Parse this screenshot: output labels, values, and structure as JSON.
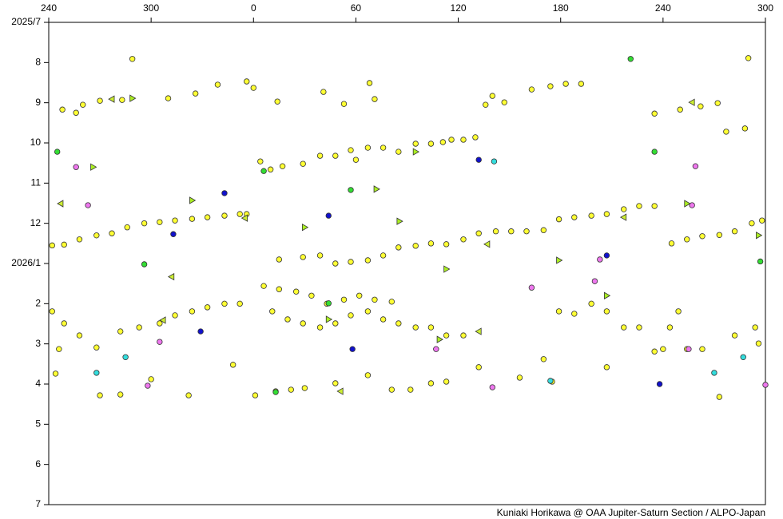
{
  "chart_data": {
    "type": "scatter",
    "credit": "Kuniaki Horikawa @ OAA Jupiter-Saturn Section / ALPO-Japan",
    "xlim": [
      -120,
      300
    ],
    "xticks": [
      {
        "value": -120,
        "label": "240"
      },
      {
        "value": -60,
        "label": "300"
      },
      0,
      60,
      120,
      180,
      240,
      300
    ],
    "ylim": [
      0,
      12
    ],
    "y_inverted": true,
    "yticks": [
      {
        "value": 0,
        "label": "2025/7"
      },
      {
        "value": 1,
        "label": "8"
      },
      {
        "value": 2,
        "label": "9"
      },
      {
        "value": 3,
        "label": "10"
      },
      {
        "value": 4,
        "label": "11"
      },
      {
        "value": 5,
        "label": "12"
      },
      {
        "value": 6,
        "label": "2026/1"
      },
      {
        "value": 7,
        "label": "2"
      },
      {
        "value": 8,
        "label": "3"
      },
      {
        "value": 9,
        "label": "4"
      },
      {
        "value": 10,
        "label": "5"
      },
      {
        "value": 11,
        "label": "6"
      },
      {
        "value": 12,
        "label": "7"
      }
    ],
    "series": [
      {
        "color": "#ffff33",
        "marker": "circle",
        "x": [
          -71,
          -112,
          -100,
          -104,
          -90,
          -77,
          -50,
          -34,
          -21,
          -4,
          0,
          14,
          41,
          53,
          68,
          71,
          136,
          140,
          147,
          163,
          174,
          183,
          192,
          235,
          250,
          262,
          272,
          290,
          277,
          288,
          4,
          10,
          17,
          29,
          39,
          48,
          57,
          67,
          76,
          85,
          95,
          104,
          111,
          116,
          123,
          130,
          60,
          -118,
          -111,
          -102,
          -92,
          -83,
          -74,
          -64,
          -55,
          -46,
          -36,
          -27,
          -17,
          -8,
          -4,
          15,
          29,
          39,
          48,
          57,
          67,
          76,
          85,
          95,
          104,
          113,
          123,
          132,
          142,
          151,
          160,
          170,
          179,
          188,
          198,
          207,
          217,
          226,
          235,
          245,
          254,
          263,
          273,
          282,
          292,
          298,
          6,
          15,
          25,
          34,
          43,
          53,
          62,
          71,
          81,
          11,
          20,
          29,
          39,
          48,
          57,
          67,
          76,
          85,
          95,
          104,
          113,
          123,
          179,
          188,
          198,
          207,
          217,
          226,
          244,
          249,
          -118,
          -111,
          -102,
          -92,
          -78,
          -67,
          -55,
          -46,
          -36,
          -27,
          -17,
          -8,
          -116,
          -114,
          -90,
          -78,
          -60,
          -38,
          -12,
          1,
          13,
          22,
          30,
          48,
          67,
          81,
          92,
          104,
          113,
          132,
          156,
          170,
          175,
          207,
          235,
          240,
          254,
          263,
          273,
          282,
          294,
          296
        ],
        "values": [
          0.91,
          2.17,
          2.05,
          2.25,
          1.95,
          1.93,
          1.89,
          1.77,
          1.55,
          1.47,
          1.63,
          1.97,
          1.73,
          2.03,
          1.51,
          1.91,
          2.05,
          1.83,
          1.99,
          1.67,
          1.59,
          1.53,
          1.53,
          2.27,
          2.17,
          2.09,
          2.01,
          0.89,
          2.72,
          2.64,
          3.46,
          3.66,
          3.58,
          3.52,
          3.32,
          3.32,
          3.18,
          3.12,
          3.12,
          3.22,
          3.02,
          3.02,
          2.98,
          2.92,
          2.92,
          2.86,
          3.42,
          5.55,
          5.53,
          5.4,
          5.3,
          5.25,
          5.1,
          5.0,
          4.97,
          4.93,
          4.89,
          4.85,
          4.81,
          4.77,
          4.77,
          5.9,
          5.84,
          5.8,
          6.0,
          5.96,
          5.92,
          5.8,
          5.6,
          5.56,
          5.5,
          5.52,
          5.4,
          5.25,
          5.2,
          5.2,
          5.2,
          5.17,
          4.9,
          4.85,
          4.81,
          4.77,
          4.65,
          4.57,
          4.57,
          5.5,
          5.4,
          5.32,
          5.29,
          5.2,
          5.0,
          4.93,
          6.56,
          6.64,
          6.7,
          6.8,
          7.0,
          6.9,
          6.8,
          6.9,
          6.95,
          7.19,
          7.39,
          7.49,
          7.59,
          7.49,
          7.29,
          7.19,
          7.39,
          7.49,
          7.59,
          7.59,
          7.79,
          7.79,
          7.19,
          7.25,
          7.0,
          7.19,
          7.59,
          7.59,
          7.59,
          7.19,
          7.19,
          7.49,
          7.79,
          8.09,
          7.69,
          7.59,
          7.49,
          7.29,
          7.19,
          7.09,
          7.0,
          7.0,
          8.74,
          8.13,
          9.28,
          9.26,
          8.88,
          9.28,
          8.52,
          9.28,
          9.18,
          9.14,
          9.1,
          8.98,
          8.78,
          9.14,
          9.14,
          8.98,
          8.94,
          8.58,
          8.84,
          8.38,
          8.94,
          8.58,
          8.19,
          8.13,
          8.13,
          8.13,
          9.32,
          7.79,
          7.59,
          7.99
        ]
      },
      {
        "color": "#33dd33",
        "marker": "circle",
        "x": [
          221,
          -115,
          -64,
          6,
          44,
          235,
          297,
          57,
          13
        ],
        "values": [
          0.91,
          3.22,
          6.02,
          3.7,
          6.99,
          3.22,
          5.95,
          4.17,
          9.2
        ]
      },
      {
        "color": "#ee77ee",
        "marker": "circle",
        "x": [
          -104,
          -97,
          107,
          140,
          200,
          203,
          259,
          257,
          255,
          300,
          -62,
          -55,
          163
        ],
        "values": [
          3.6,
          4.55,
          8.13,
          9.08,
          6.44,
          5.9,
          3.58,
          4.55,
          8.13,
          9.02,
          9.04,
          7.95,
          6.6
        ]
      },
      {
        "color": "#33dddd",
        "marker": "circle",
        "x": [
          -92,
          -75,
          141,
          174,
          270,
          287
        ],
        "values": [
          8.72,
          8.33,
          3.46,
          8.92,
          8.72,
          8.33
        ]
      },
      {
        "color": "#1111cc",
        "marker": "circle",
        "x": [
          -31,
          -17,
          44,
          207,
          238,
          58,
          -47,
          132
        ],
        "values": [
          7.69,
          4.25,
          4.81,
          5.8,
          9.0,
          8.13,
          5.27,
          3.42
        ]
      },
      {
        "color": "#aaee22",
        "marker": "triangle-right",
        "x": [
          -71,
          -94,
          -36,
          30,
          72,
          95,
          113,
          179,
          207,
          254,
          296,
          85.5,
          44,
          109
        ],
        "values": [
          1.89,
          3.6,
          4.43,
          5.1,
          4.15,
          3.22,
          6.14,
          5.92,
          6.8,
          4.51,
          5.3,
          4.95,
          7.39,
          7.89
        ]
      },
      {
        "color": "#ccee33",
        "marker": "triangle-left",
        "x": [
          -113,
          -83,
          -48,
          -5,
          51,
          132,
          217,
          257,
          -53,
          137
        ],
        "values": [
          4.51,
          1.91,
          6.33,
          4.87,
          9.18,
          7.69,
          4.85,
          1.99,
          7.41,
          5.52
        ]
      }
    ]
  }
}
